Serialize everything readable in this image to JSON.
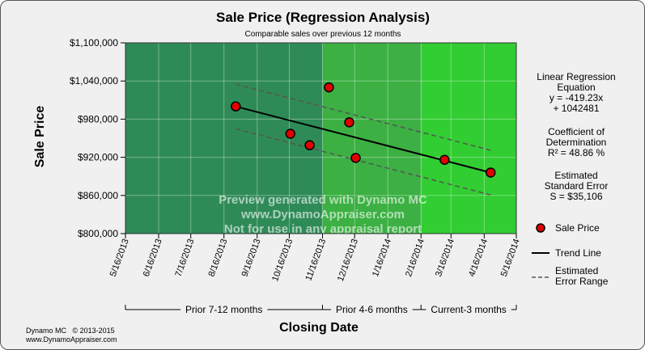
{
  "title": "Sale Price (Regression Analysis)",
  "subtitle": "Comparable sales over previous 12 months",
  "colors": {
    "period_prior_7_12": "#2e8b57",
    "period_prior_4_6": "#3cb043",
    "period_current_3": "#32cd32",
    "point_fill": "#e00000",
    "trend_line": "#000000",
    "error_range": "#555555"
  },
  "chart_data": {
    "type": "scatter",
    "title": "Sale Price (Regression Analysis)",
    "subtitle": "Comparable sales over previous 12 months",
    "xlabel": "Closing Date",
    "ylabel": "Sale Price",
    "ylim": [
      800000,
      1100000
    ],
    "xlim": [
      "2013-05-16",
      "2014-05-16"
    ],
    "y_ticks": [
      "$1,100,000",
      "$1,040,000",
      "$980,000",
      "$920,000",
      "$860,000",
      "$800,000"
    ],
    "y_tick_values": [
      1100000,
      1040000,
      980000,
      920000,
      860000,
      800000
    ],
    "x_ticks": [
      "5/16/2013",
      "6/16/2013",
      "7/16/2013",
      "8/16/2013",
      "9/16/2013",
      "10/16/2013",
      "11/16/2013",
      "12/16/2013",
      "1/16/2014",
      "2/16/2014",
      "3/16/2014",
      "4/16/2014",
      "5/16/2014"
    ],
    "x_tick_dates": [
      "2013-05-16",
      "2013-06-16",
      "2013-07-16",
      "2013-08-16",
      "2013-09-16",
      "2013-10-16",
      "2013-11-16",
      "2013-12-16",
      "2014-01-16",
      "2014-02-16",
      "2014-03-16",
      "2014-04-16",
      "2014-05-16"
    ],
    "grid": true,
    "periods": [
      {
        "label": "Prior 7-12 months",
        "start": "2013-05-16",
        "end": "2013-11-16"
      },
      {
        "label": "Prior 4-6 months",
        "start": "2013-11-16",
        "end": "2014-02-16"
      },
      {
        "label": "Current-3 months",
        "start": "2014-02-16",
        "end": "2014-05-16"
      }
    ],
    "series": [
      {
        "name": "Sale Price",
        "type": "scatter",
        "points": [
          {
            "x": "2013-08-27",
            "y": 1000000
          },
          {
            "x": "2013-10-17",
            "y": 957000
          },
          {
            "x": "2013-11-04",
            "y": 939000
          },
          {
            "x": "2013-11-22",
            "y": 1030000
          },
          {
            "x": "2013-12-11",
            "y": 975000
          },
          {
            "x": "2013-12-17",
            "y": 919000
          },
          {
            "x": "2014-03-10",
            "y": 916000
          },
          {
            "x": "2014-04-22",
            "y": 896000
          }
        ]
      },
      {
        "name": "Trend Line",
        "type": "line",
        "points": [
          {
            "x": "2013-08-27",
            "y": 1000000
          },
          {
            "x": "2014-04-22",
            "y": 896000
          }
        ]
      },
      {
        "name": "Estimated Error Range",
        "type": "dashed",
        "upper": [
          {
            "x": "2013-08-27",
            "y": 1035106
          },
          {
            "x": "2014-04-22",
            "y": 931106
          }
        ],
        "lower": [
          {
            "x": "2013-08-27",
            "y": 964894
          },
          {
            "x": "2014-04-22",
            "y": 860894
          }
        ]
      }
    ],
    "legend_position": "right",
    "watermark": [
      "Preview generated with Dynamo MC",
      "www.DynamoAppraiser.com",
      "Not for use in any appraisal report"
    ]
  },
  "stats": {
    "equation_title_1": "Linear Regression",
    "equation_title_2": "Equation",
    "equation_line_1": "y = -419.23x",
    "equation_line_2": "+ 1042481",
    "cod_title_1": "Coefficient of",
    "cod_title_2": "Determination",
    "cod_value": "R² = 48.86 %",
    "se_title_1": "Estimated",
    "se_title_2": "Standard Error",
    "se_value": "S = $35,106"
  },
  "legend": {
    "sale_price": "Sale Price",
    "trend_line": "Trend Line",
    "error_line_1": "Estimated",
    "error_line_2": "Error Range"
  },
  "footer": {
    "line1": "Dynamo MC   © 2013-2015",
    "line2": "www.DynamoAppraiser.com"
  }
}
